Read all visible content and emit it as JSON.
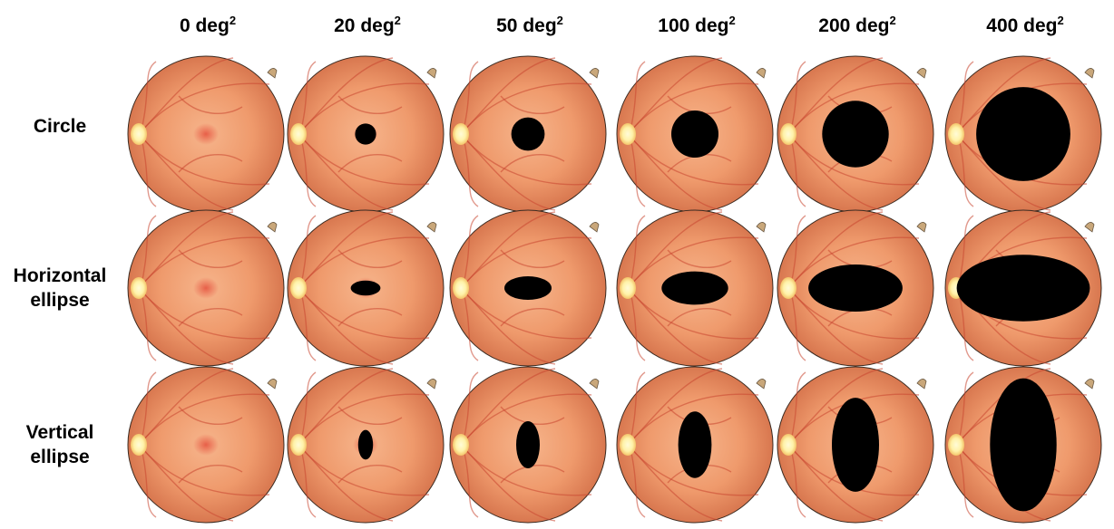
{
  "columns": [
    {
      "value": "0",
      "unit": "deg",
      "exp": "2",
      "area_deg2": 0
    },
    {
      "value": "20",
      "unit": "deg",
      "exp": "2",
      "area_deg2": 20
    },
    {
      "value": "50",
      "unit": "deg",
      "exp": "2",
      "area_deg2": 50
    },
    {
      "value": "100",
      "unit": "deg",
      "exp": "2",
      "area_deg2": 100
    },
    {
      "value": "200",
      "unit": "deg",
      "exp": "2",
      "area_deg2": 200
    },
    {
      "value": "400",
      "unit": "deg",
      "exp": "2",
      "area_deg2": 400
    }
  ],
  "rows": [
    {
      "label_line1": "Circle",
      "label_line2": "",
      "shape": "circle",
      "aspect_w_to_h": 1.0
    },
    {
      "label_line1": "Horizontal",
      "label_line2": "ellipse",
      "shape": "horizontal-ellipse",
      "aspect_w_to_h": 2.0
    },
    {
      "label_line1": "Vertical",
      "label_line2": "ellipse",
      "shape": "vertical-ellipse",
      "aspect_w_to_h": 0.5
    }
  ],
  "colors": {
    "retina_center": "#f6b58c",
    "retina_mid": "#ef9a6c",
    "retina_edge": "#d8774f",
    "vessel": "#c8452f",
    "optic_disc": "#fff2a8",
    "fovea": "#e5503c",
    "scotoma": "#000000"
  }
}
